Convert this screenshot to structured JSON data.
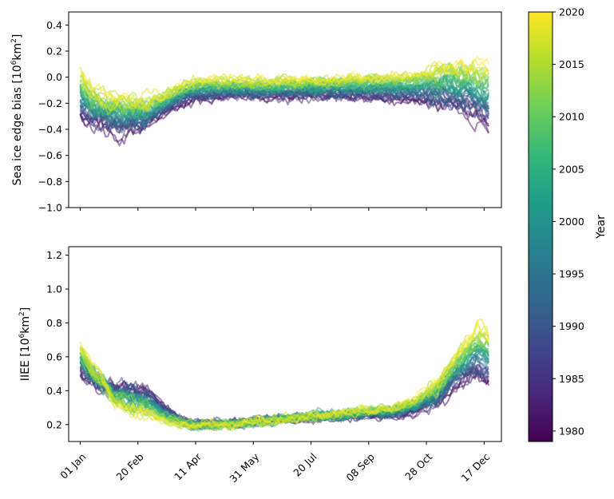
{
  "chart_data": [
    {
      "type": "line",
      "title": "",
      "xlabel": "",
      "ylabel": "Sea ice edge bias [10^6 km^2]",
      "ylabel_main": "Sea ice edge bias [10",
      "ylabel_sup": "6",
      "ylabel_unit": "km",
      "ylabel_sup2": "2",
      "ylabel_close": "]",
      "xlim": [
        -10,
        365
      ],
      "ylim": [
        -1.0,
        0.5
      ],
      "yticks": [
        -1.0,
        -0.8,
        -0.6,
        -0.4,
        -0.2,
        0.0,
        0.2,
        0.4
      ],
      "ytick_labels": [
        "−1.0",
        "−0.8",
        "−0.6",
        "−0.4",
        "−0.2",
        "0.0",
        "0.2",
        "0.4"
      ],
      "xticks_day": [
        0,
        50,
        100,
        150,
        200,
        250,
        300,
        350
      ],
      "xtick_labels_shown": false,
      "grid": false,
      "series_years": [
        1979,
        2020
      ],
      "envelope": {
        "x_day": [
          0,
          10,
          25,
          40,
          55,
          70,
          85,
          100,
          130,
          160,
          200,
          240,
          280,
          300,
          320,
          340,
          360
        ],
        "early_year_mean": [
          -0.3,
          -0.35,
          -0.4,
          -0.42,
          -0.38,
          -0.3,
          -0.22,
          -0.17,
          -0.15,
          -0.15,
          -0.15,
          -0.16,
          -0.18,
          -0.2,
          -0.22,
          -0.3,
          -0.4
        ],
        "late_year_mean": [
          0.05,
          -0.1,
          -0.15,
          -0.18,
          -0.18,
          -0.14,
          -0.06,
          -0.02,
          -0.02,
          -0.03,
          -0.02,
          0.0,
          0.02,
          0.05,
          0.08,
          0.1,
          0.05
        ],
        "noise": 0.06
      }
    },
    {
      "type": "line",
      "title": "",
      "xlabel": "",
      "ylabel": "IIEE [10^6 km^2]",
      "ylabel_main": "IIEE [10",
      "ylabel_sup": "6",
      "ylabel_unit": "km",
      "ylabel_sup2": "2",
      "ylabel_close": "]",
      "xlim": [
        -10,
        365
      ],
      "ylim": [
        0.1,
        1.25
      ],
      "yticks": [
        0.2,
        0.4,
        0.6,
        0.8,
        1.0,
        1.2
      ],
      "ytick_labels": [
        "0.2",
        "0.4",
        "0.6",
        "0.8",
        "1.0",
        "1.2"
      ],
      "xticks_day": [
        0,
        50,
        100,
        150,
        200,
        250,
        300,
        350
      ],
      "xtick_labels": [
        "01 Jan",
        "20 Feb",
        "11 Apr",
        "31 May",
        "20 Jul",
        "08 Sep",
        "28 Oct",
        "17 Dec"
      ],
      "grid": false,
      "series_years": [
        1979,
        2020
      ],
      "envelope": {
        "x_day": [
          0,
          15,
          30,
          45,
          60,
          75,
          90,
          100,
          130,
          160,
          200,
          240,
          270,
          290,
          310,
          330,
          345,
          360
        ],
        "early_year_mean": [
          0.5,
          0.44,
          0.42,
          0.43,
          0.4,
          0.3,
          0.22,
          0.2,
          0.21,
          0.23,
          0.24,
          0.25,
          0.25,
          0.27,
          0.33,
          0.45,
          0.48,
          0.42
        ],
        "late_year_mean": [
          0.65,
          0.5,
          0.34,
          0.28,
          0.26,
          0.22,
          0.2,
          0.19,
          0.2,
          0.22,
          0.25,
          0.28,
          0.3,
          0.35,
          0.45,
          0.65,
          0.78,
          0.7
        ],
        "noise": 0.04
      }
    }
  ],
  "colorbar": {
    "label": "Year",
    "vmin": 1979,
    "vmax": 2020,
    "ticks": [
      1980,
      1985,
      1990,
      1995,
      2000,
      2005,
      2010,
      2015,
      2020
    ],
    "tick_labels": [
      "1980",
      "1985",
      "1990",
      "1995",
      "2000",
      "2005",
      "2010",
      "2015",
      "2020"
    ],
    "colormap": "viridis",
    "stops": [
      "#440154",
      "#482878",
      "#3e4989",
      "#31688e",
      "#26828e",
      "#1f9e89",
      "#35b779",
      "#6ece58",
      "#b5de2b",
      "#fde725"
    ]
  }
}
